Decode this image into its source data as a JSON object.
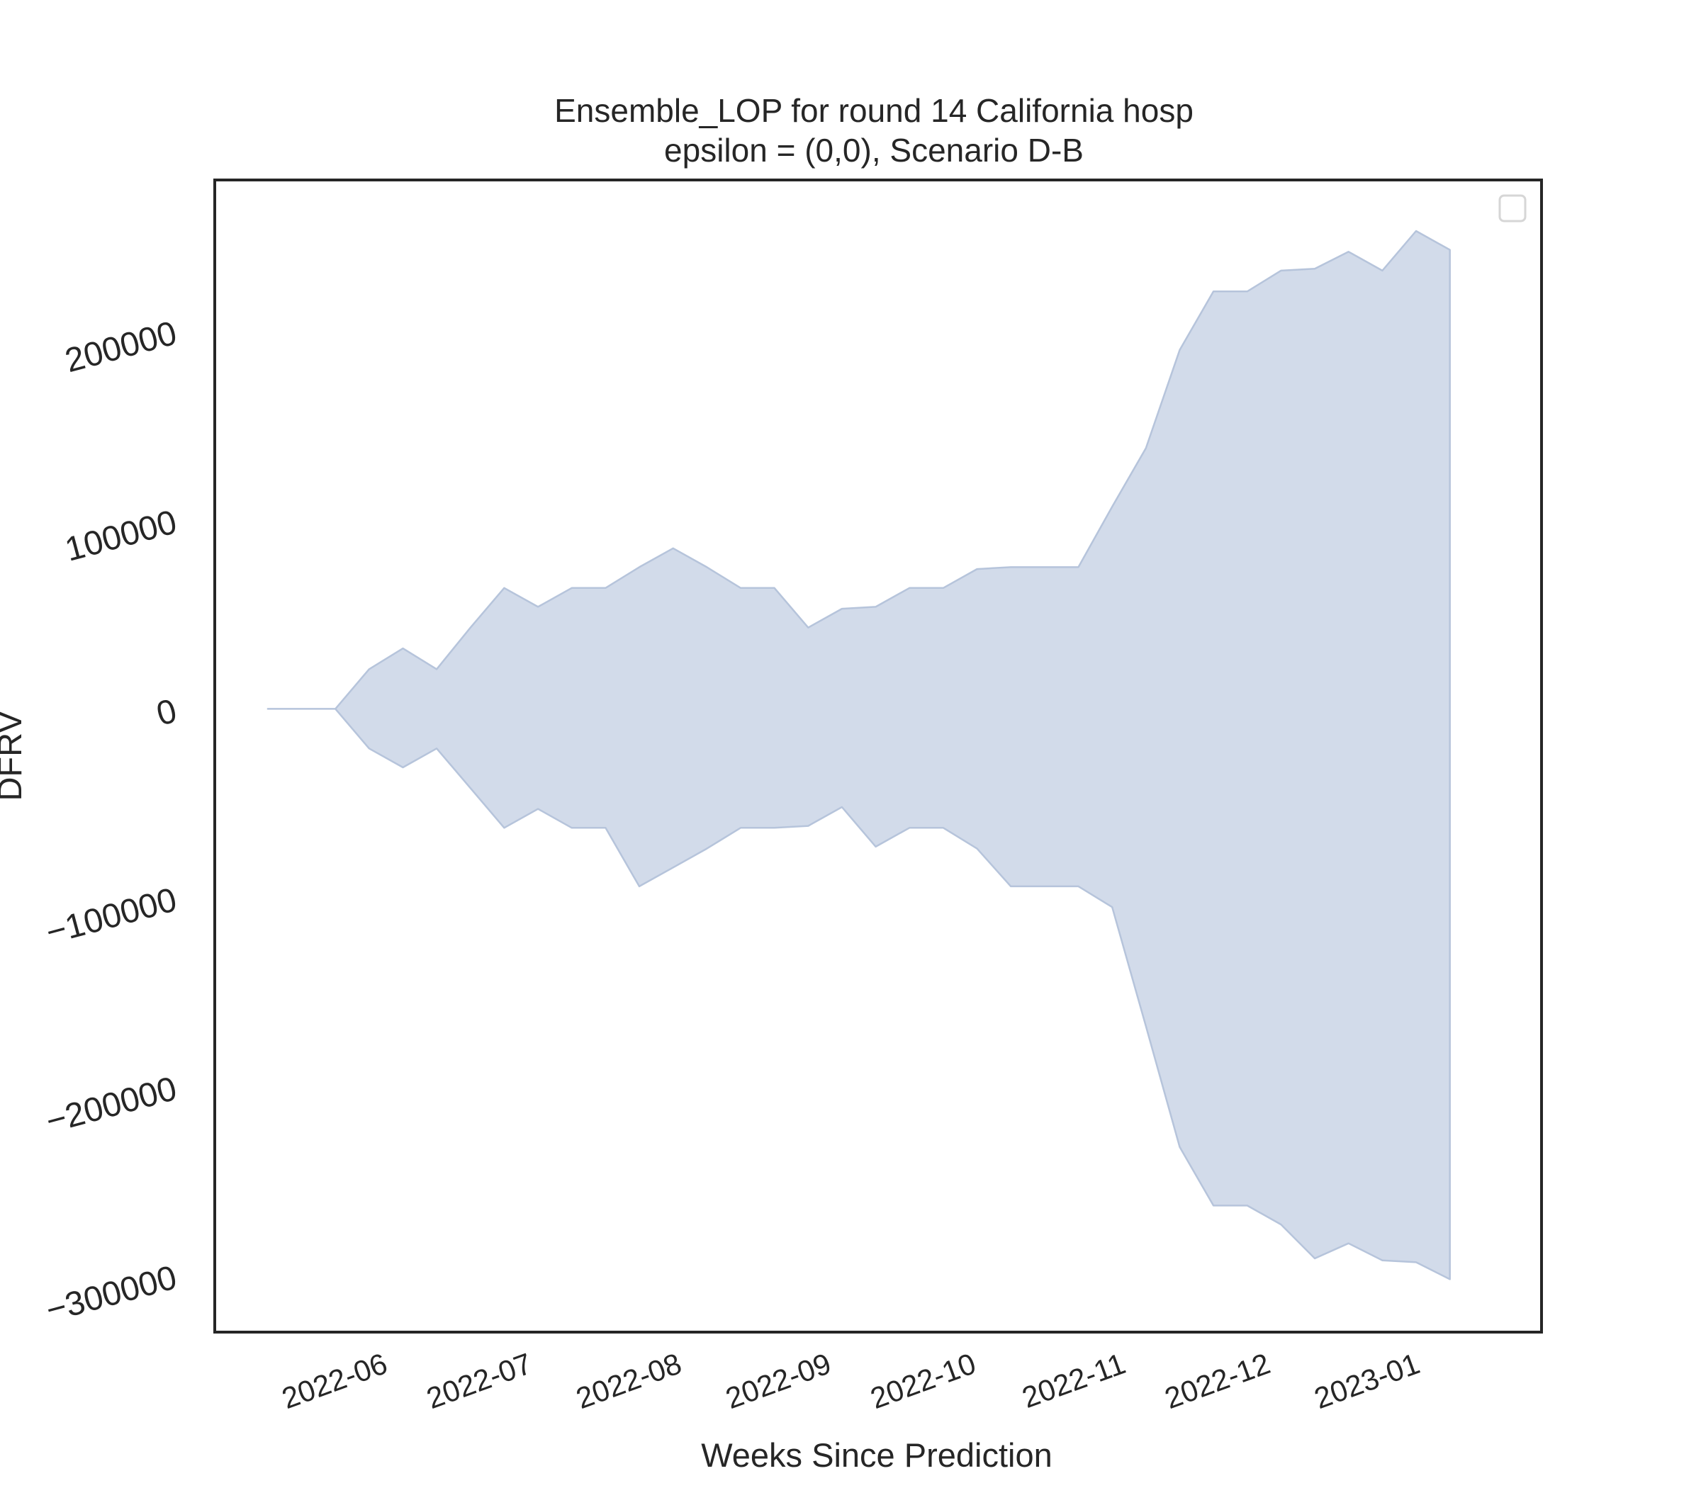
{
  "chart_data": {
    "type": "area",
    "title": "Ensemble_LOP for round 14 California hosp",
    "subtitle": "epsilon = (0,0), Scenario D-B",
    "xlabel": "Weeks Since Prediction",
    "ylabel": "DFRV",
    "ylim": [
      -330000,
      280000
    ],
    "grid": false,
    "legend": "top-right, empty",
    "colors": {
      "fill": "#d2dbea",
      "edge": "#b6c4db",
      "frame": "#262626"
    },
    "yticks": [
      {
        "value": 200000,
        "label": "200000"
      },
      {
        "value": 100000,
        "label": "100000"
      },
      {
        "value": 0,
        "label": "0"
      },
      {
        "value": -100000,
        "label": "−100000"
      },
      {
        "value": -200000,
        "label": "−200000"
      },
      {
        "value": -300000,
        "label": "−300000"
      }
    ],
    "xticks": [
      {
        "date": "2022-06-01",
        "label": "2022-06"
      },
      {
        "date": "2022-07-01",
        "label": "2022-07"
      },
      {
        "date": "2022-08-01",
        "label": "2022-08"
      },
      {
        "date": "2022-09-01",
        "label": "2022-09"
      },
      {
        "date": "2022-10-01",
        "label": "2022-10"
      },
      {
        "date": "2022-11-01",
        "label": "2022-11"
      },
      {
        "date": "2022-12-01",
        "label": "2022-12"
      },
      {
        "date": "2023-01-01",
        "label": "2023-01"
      }
    ],
    "xlim": [
      "2022-04-27",
      "2023-01-27"
    ],
    "series": [
      {
        "x": [
          "2022-05-08",
          "2022-05-15",
          "2022-05-22",
          "2022-05-29",
          "2022-06-05",
          "2022-06-12",
          "2022-06-19",
          "2022-06-26",
          "2022-07-03",
          "2022-07-10",
          "2022-07-17",
          "2022-07-24",
          "2022-07-31",
          "2022-08-07",
          "2022-08-14",
          "2022-08-21",
          "2022-08-28",
          "2022-09-04",
          "2022-09-11",
          "2022-09-18",
          "2022-09-25",
          "2022-10-02",
          "2022-10-09",
          "2022-10-16",
          "2022-10-23",
          "2022-10-30",
          "2022-11-06",
          "2022-11-13",
          "2022-11-20",
          "2022-11-27",
          "2022-12-04",
          "2022-12-11",
          "2022-12-18",
          "2022-12-25",
          "2023-01-01",
          "2023-01-08"
        ],
        "upper": [
          0,
          0,
          0,
          21000,
          32000,
          21000,
          43000,
          64000,
          54000,
          64000,
          64000,
          75000,
          85000,
          75000,
          64000,
          64000,
          43000,
          53000,
          54000,
          64000,
          64000,
          74000,
          75000,
          75000,
          75000,
          107000,
          138000,
          190000,
          221000,
          221000,
          232000,
          233000,
          242000,
          232000,
          253000,
          243000
        ],
        "lower": [
          0,
          0,
          0,
          -21000,
          -31000,
          -21000,
          -42000,
          -63000,
          -53000,
          -63000,
          -63000,
          -94000,
          -84000,
          -74000,
          -63000,
          -63000,
          -62000,
          -52000,
          -73000,
          -63000,
          -63000,
          -74000,
          -94000,
          -94000,
          -94000,
          -105000,
          -168000,
          -232000,
          -263000,
          -263000,
          -273000,
          -291000,
          -283000,
          -292000,
          -293000,
          -302000
        ]
      }
    ]
  }
}
